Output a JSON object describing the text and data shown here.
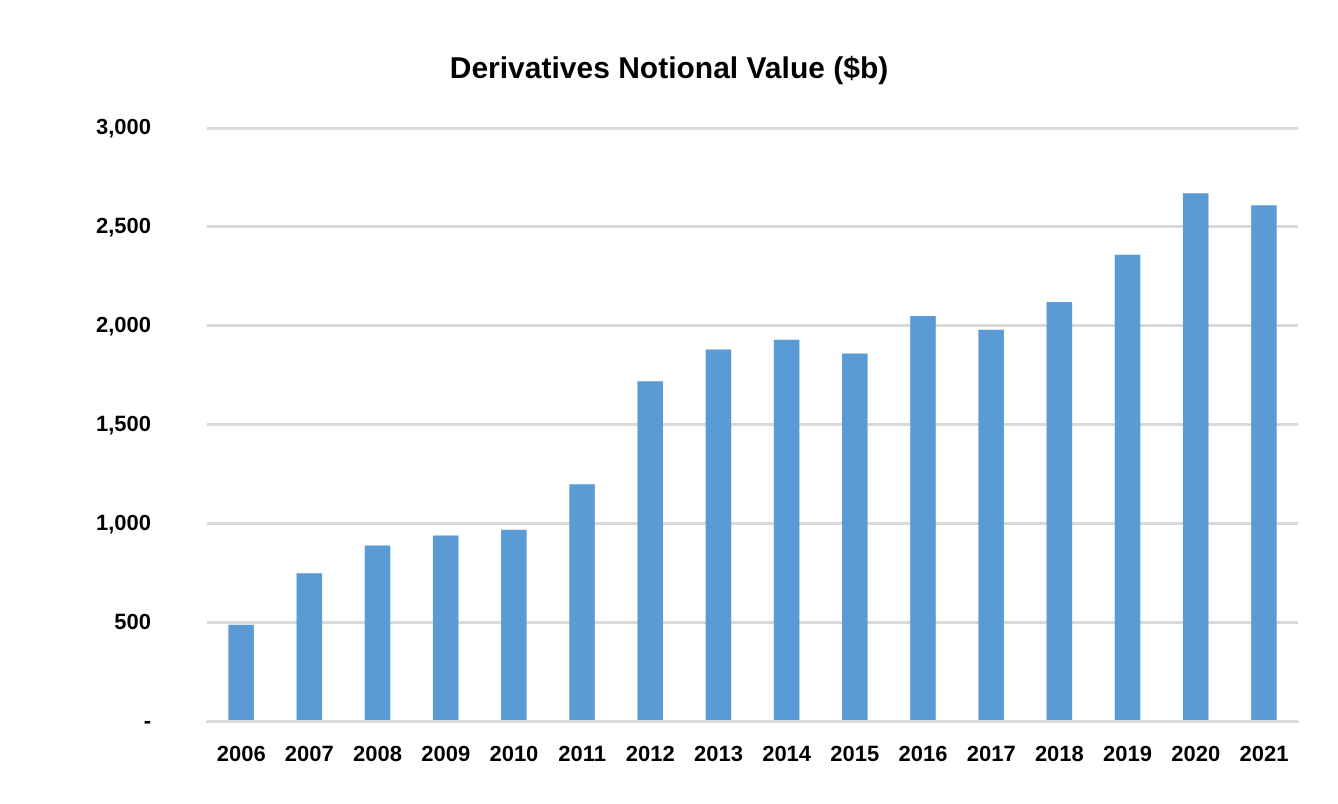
{
  "chart_data": {
    "type": "bar",
    "title": "Derivatives Notional Value ($b)",
    "categories": [
      "2006",
      "2007",
      "2008",
      "2009",
      "2010",
      "2011",
      "2012",
      "2013",
      "2014",
      "2015",
      "2016",
      "2017",
      "2018",
      "2019",
      "2020",
      "2021"
    ],
    "values": [
      490,
      750,
      890,
      940,
      970,
      1200,
      1720,
      1880,
      1930,
      1860,
      2050,
      1980,
      2120,
      2360,
      2670,
      2610
    ],
    "color": "#5b9bd5",
    "ylim": [
      0,
      3000
    ],
    "yticks": [
      {
        "value": 0,
        "label": "-"
      },
      {
        "value": 500,
        "label": "500"
      },
      {
        "value": 1000,
        "label": "1,000"
      },
      {
        "value": 1500,
        "label": "1,500"
      },
      {
        "value": 2000,
        "label": "2,000"
      },
      {
        "value": 2500,
        "label": "2,500"
      },
      {
        "value": 3000,
        "label": "3,000"
      }
    ],
    "grid": "y",
    "legend": false
  }
}
